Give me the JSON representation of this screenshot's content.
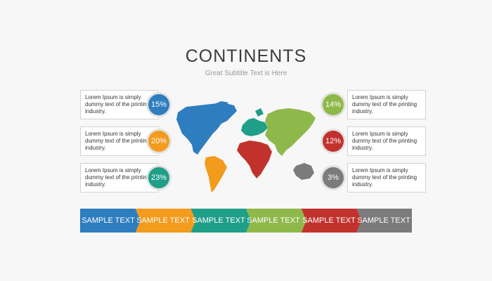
{
  "title": "CONTINENTS",
  "subtitle": "Great Subtitle Text is Here",
  "callouts": [
    {
      "side": "left",
      "text": "Lorem Ipsum is simply dummy text of the printing industry.",
      "percent": "15%",
      "color": "#2e7dbf"
    },
    {
      "side": "left",
      "text": "Lorem Ipsum is simply dummy text of the printing industry.",
      "percent": "20%",
      "color": "#f29b1d"
    },
    {
      "side": "left",
      "text": "Lorem Ipsum is simply dummy text of the printing industry.",
      "percent": "23%",
      "color": "#1f9e88"
    },
    {
      "side": "right",
      "text": "Lorem Ipsum is simply dummy text of the printing industry.",
      "percent": "14%",
      "color": "#8fb84a"
    },
    {
      "side": "right",
      "text": "Lorem Ipsum is simply dummy text of the printing industry.",
      "percent": "12%",
      "color": "#c1322d"
    },
    {
      "side": "right",
      "text": "Lorem Ipsum is simply dummy text of the printing industry.",
      "percent": "3%",
      "color": "#7b7b7b"
    }
  ],
  "segments": [
    {
      "label": "SAMPLE TEXT",
      "color": "#2e7dbf"
    },
    {
      "label": "SAMPLE TEXT",
      "color": "#f29b1d"
    },
    {
      "label": "SAMPLE TEXT",
      "color": "#1f9e88"
    },
    {
      "label": "SAMPLE TEXT",
      "color": "#8fb84a"
    },
    {
      "label": "SAMPLE TEXT",
      "color": "#c1322d"
    },
    {
      "label": "SAMPLE TEXT",
      "color": "#7b7b7b"
    }
  ],
  "map_regions": [
    {
      "name": "north-america",
      "color": "#2e7dbf"
    },
    {
      "name": "south-america",
      "color": "#f29b1d"
    },
    {
      "name": "europe",
      "color": "#1f9e88"
    },
    {
      "name": "asia",
      "color": "#8fb84a"
    },
    {
      "name": "africa",
      "color": "#c1322d"
    },
    {
      "name": "australia",
      "color": "#7b7b7b"
    }
  ]
}
